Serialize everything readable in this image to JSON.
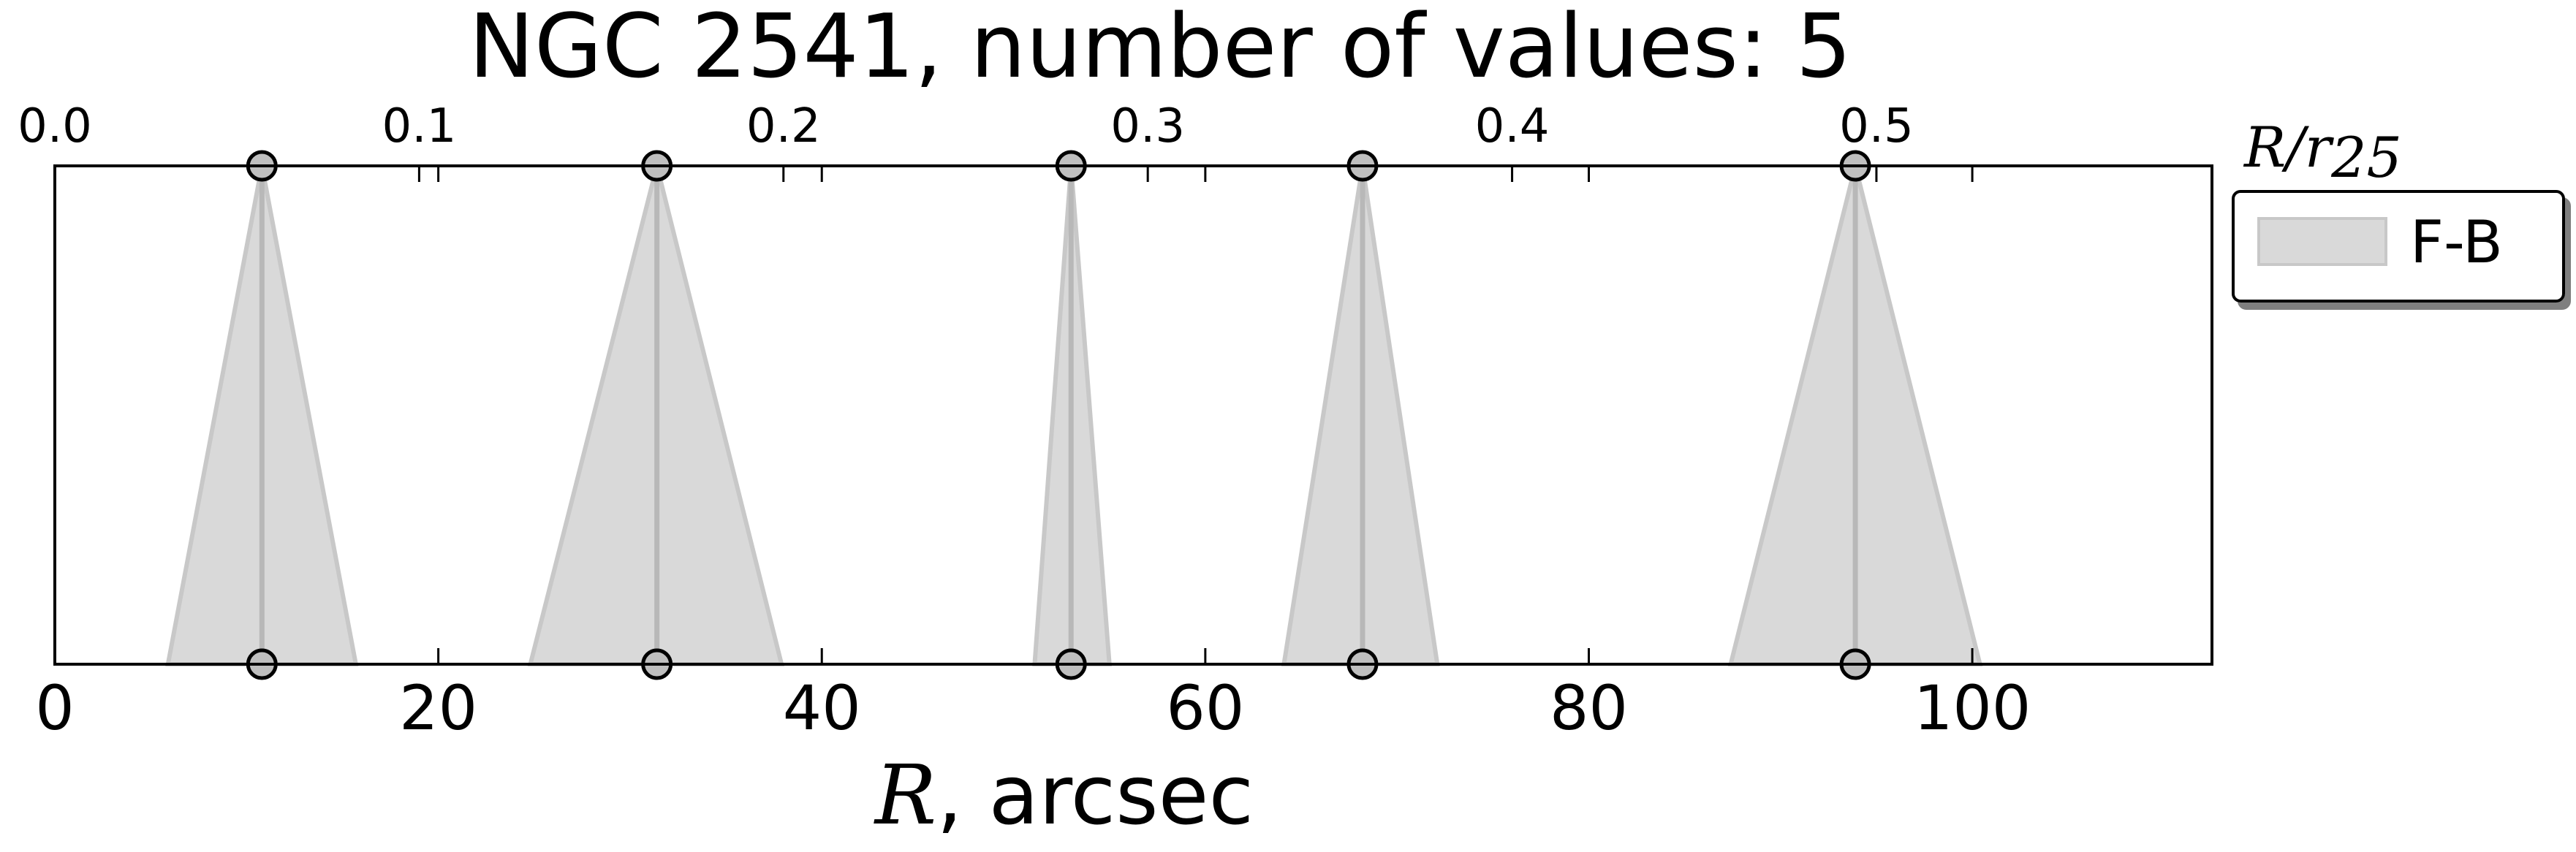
{
  "chart_data": {
    "type": "range-markers",
    "title": "NGC 2541, number of values: 5",
    "xlabel_symbol": "R",
    "xlabel_unit": ", arcsec",
    "xlim": [
      0,
      112.5
    ],
    "xticks": [
      0,
      20,
      40,
      60,
      80,
      100
    ],
    "xtick_labels": [
      "0",
      "20",
      "40",
      "60",
      "80",
      "100"
    ],
    "top_axis": {
      "label_symbol": "R/r",
      "label_subscript": "25",
      "scale_arcsec_per_unit": 190,
      "ticks": [
        0.0,
        0.1,
        0.2,
        0.3,
        0.4,
        0.5
      ],
      "tick_labels": [
        "0.0",
        "0.1",
        "0.2",
        "0.3",
        "0.4",
        "0.5"
      ]
    },
    "series": [
      {
        "name": "F-B",
        "color": "#d9d9d9",
        "edge_color": "#c8c8c8",
        "line_color": "#b8b8b8",
        "points": [
          {
            "center": 10.8,
            "low": 5.9,
            "high": 15.7
          },
          {
            "center": 31.4,
            "low": 24.8,
            "high": 37.9
          },
          {
            "center": 53.0,
            "low": 51.1,
            "high": 55.0
          },
          {
            "center": 68.2,
            "low": 64.1,
            "high": 72.1
          },
          {
            "center": 93.9,
            "low": 87.4,
            "high": 100.4
          }
        ]
      }
    ],
    "legend": {
      "position": "outside-right-top",
      "entries": [
        "F-B"
      ]
    }
  }
}
